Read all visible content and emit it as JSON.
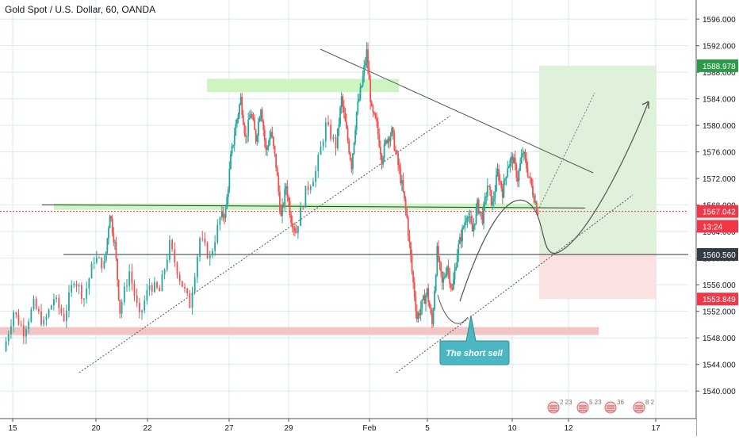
{
  "header": {
    "title": "Gold Spot / U.S. Dollar, 60, OANDA"
  },
  "colors": {
    "up": "#26a69a",
    "down": "#ef5350",
    "grid": "#d6e9f5",
    "green_zone": "#ccf5c2",
    "red_zone": "#f2c4c4",
    "target_zone": "#dff1da",
    "stop_zone": "#fbe2e2",
    "line": "#333333",
    "callout": "#4ab7c2",
    "price_marker": "#f23645"
  },
  "chart_data": {
    "type": "candlestick",
    "title": "Gold Spot / U.S. Dollar, 60, OANDA",
    "x_ticks": [
      "15",
      "20",
      "22",
      "27",
      "29",
      "Feb",
      "5",
      "10",
      "12",
      "17"
    ],
    "y_ticks": [
      1540,
      1544,
      1548,
      1552,
      1556,
      1560,
      1564,
      1568,
      1572,
      1576,
      1580,
      1584,
      1588,
      1592,
      1596
    ],
    "y_tick_labels": [
      "1540.000",
      "1544.000",
      "1548.000",
      "1552.000",
      "1556.000",
      "1560.000",
      "1564.000",
      "1568.000",
      "1572.000",
      "1576.000",
      "1580.000",
      "1584.000",
      "1588.000",
      "1592.000",
      "1596.000"
    ],
    "ylim": [
      1536.8,
      1598.4
    ],
    "grid": true,
    "price_path": [
      [
        0,
        1546
      ],
      [
        2,
        1552
      ],
      [
        4,
        1549
      ],
      [
        6,
        1553
      ],
      [
        8,
        1550
      ],
      [
        10,
        1554
      ],
      [
        12,
        1551
      ],
      [
        14,
        1557
      ],
      [
        16,
        1554
      ],
      [
        18,
        1560
      ],
      [
        20,
        1559
      ],
      [
        21,
        1567
      ],
      [
        22,
        1562
      ],
      [
        23,
        1552
      ],
      [
        25,
        1558
      ],
      [
        27,
        1551
      ],
      [
        29,
        1556
      ],
      [
        31,
        1555
      ],
      [
        33,
        1562
      ],
      [
        35,
        1557
      ],
      [
        37,
        1553
      ],
      [
        39,
        1563
      ],
      [
        41,
        1560
      ],
      [
        43,
        1566
      ],
      [
        44,
        1567
      ],
      [
        45,
        1575
      ],
      [
        46,
        1580
      ],
      [
        47,
        1584
      ],
      [
        48,
        1578
      ],
      [
        49,
        1582
      ],
      [
        50,
        1578
      ],
      [
        51,
        1583
      ],
      [
        52,
        1576
      ],
      [
        53,
        1579
      ],
      [
        54,
        1574
      ],
      [
        55,
        1566
      ],
      [
        56,
        1571
      ],
      [
        57,
        1566
      ],
      [
        58,
        1564
      ],
      [
        60,
        1570
      ],
      [
        62,
        1573
      ],
      [
        64,
        1580
      ],
      [
        66,
        1577
      ],
      [
        67,
        1584
      ],
      [
        68,
        1579
      ],
      [
        69,
        1574
      ],
      [
        70,
        1582
      ],
      [
        71,
        1586
      ],
      [
        72,
        1591
      ],
      [
        73,
        1582
      ],
      [
        74,
        1580
      ],
      [
        75,
        1575
      ],
      [
        76,
        1578
      ],
      [
        77,
        1579
      ],
      [
        78,
        1575
      ],
      [
        79,
        1571
      ],
      [
        80,
        1566
      ],
      [
        81,
        1558
      ],
      [
        82,
        1551
      ],
      [
        83,
        1553
      ],
      [
        84,
        1555
      ],
      [
        85,
        1550
      ],
      [
        86,
        1561
      ],
      [
        87,
        1556
      ],
      [
        88,
        1559
      ],
      [
        89,
        1555
      ],
      [
        90,
        1561
      ],
      [
        91,
        1564
      ],
      [
        92,
        1567
      ],
      [
        93,
        1564
      ],
      [
        94,
        1568
      ],
      [
        95,
        1566
      ],
      [
        96,
        1571
      ],
      [
        97,
        1568
      ],
      [
        98,
        1573
      ],
      [
        99,
        1570
      ],
      [
        100,
        1574
      ],
      [
        101,
        1575
      ],
      [
        102,
        1572
      ],
      [
        103,
        1576
      ],
      [
        104,
        1573
      ],
      [
        105,
        1570
      ],
      [
        106,
        1567
      ]
    ],
    "annotations": {
      "resistance_zone": [
        1585,
        1587
      ],
      "green_zone": [
        1567,
        1568
      ],
      "red_zone": [
        1548.5,
        1549.5
      ],
      "horizontal_lines": [
        1567.8,
        1560.56
      ],
      "target_zone": [
        1560.56,
        1588.978
      ],
      "stop_zone": [
        1553.849,
        1560.56
      ],
      "callout": "The short sell"
    },
    "price_labels": [
      {
        "text": "1588.978",
        "value": 1588.978,
        "color": "#2d9a49"
      },
      {
        "text": "1567.042",
        "value": 1567.042,
        "color": "#f23645"
      },
      {
        "text": "13:24",
        "value": 1564.8,
        "color": "#f23645"
      },
      {
        "text": "1560.560",
        "value": 1560.56,
        "color": "#363a45"
      },
      {
        "text": "1553.849",
        "value": 1553.849,
        "color": "#f23645"
      }
    ]
  },
  "events": [
    {
      "label": "2 23"
    },
    {
      "label": "5 23"
    },
    {
      "label": "36"
    },
    {
      "label": "8 2"
    }
  ]
}
